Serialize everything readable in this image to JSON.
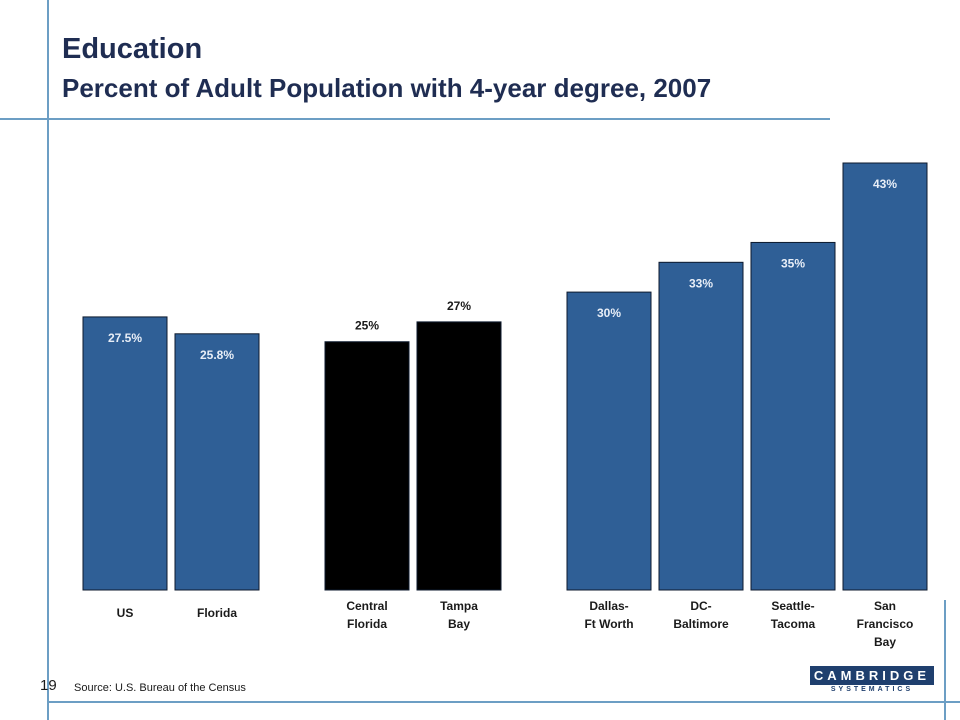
{
  "header": {
    "title": "Education",
    "subtitle": "Percent of Adult Population with 4-year degree, 2007"
  },
  "footer": {
    "page_number": "19",
    "source": "Source:  U.S. Bureau  of the Census",
    "logo_text": "CAMBRIDGE",
    "logo_subtext": "SYSTEMATICS"
  },
  "colors": {
    "bar_blue": "#2f5f96",
    "bar_black": "#000000",
    "title": "#1f2d52",
    "frame": "#6c9ec4"
  },
  "chart_data": {
    "type": "bar",
    "title": "Percent of Adult Population with 4-year degree, 2007",
    "xlabel": "",
    "ylabel": "",
    "ylim": [
      0,
      43
    ],
    "grid": false,
    "categories": [
      "US",
      "Florida",
      "Central Florida",
      "Tampa Bay",
      "Dallas-Ft Worth",
      "DC-Baltimore",
      "Seattle-Tacoma",
      "San Francisco Bay"
    ],
    "category_label_lines": [
      [
        "US"
      ],
      [
        "Florida"
      ],
      [
        "Central",
        "Florida"
      ],
      [
        "Tampa",
        "Bay"
      ],
      [
        "Dallas-",
        "Ft Worth"
      ],
      [
        "DC-",
        "Baltimore"
      ],
      [
        "Seattle-",
        "Tacoma"
      ],
      [
        "San",
        "Francisco",
        "Bay"
      ]
    ],
    "values": [
      27.5,
      25.8,
      25,
      27,
      30,
      33,
      35,
      43
    ],
    "value_labels": [
      "27.5%",
      "25.8%",
      "25%",
      "27%",
      "30%",
      "33%",
      "35%",
      "43%"
    ],
    "bar_colors": [
      "#2f5f96",
      "#2f5f96",
      "#000000",
      "#000000",
      "#2f5f96",
      "#2f5f96",
      "#2f5f96",
      "#2f5f96"
    ],
    "group_sizes": [
      2,
      2,
      4
    ]
  }
}
